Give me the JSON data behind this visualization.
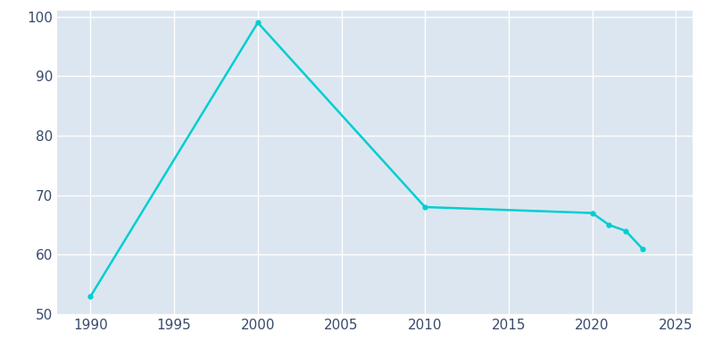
{
  "years": [
    1990,
    2000,
    2010,
    2020,
    2021,
    2022,
    2023
  ],
  "population": [
    53,
    99,
    68,
    67,
    65,
    64,
    61
  ],
  "line_color": "#00CED1",
  "bg_color": "#ffffff",
  "plot_bg_color": "#dce6f0",
  "grid_color": "#ffffff",
  "tick_color": "#3a4a6b",
  "xlim": [
    1988,
    2026
  ],
  "ylim": [
    50,
    101
  ],
  "xticks": [
    1990,
    1995,
    2000,
    2005,
    2010,
    2015,
    2020,
    2025
  ],
  "yticks": [
    50,
    60,
    70,
    80,
    90,
    100
  ],
  "linewidth": 1.8,
  "marker": "o",
  "markersize": 3.5
}
